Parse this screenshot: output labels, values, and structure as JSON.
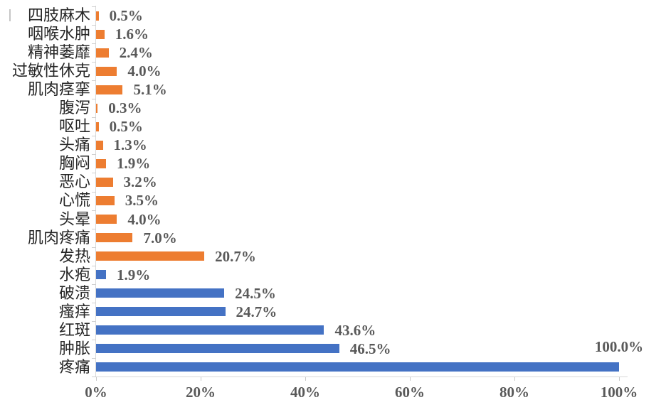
{
  "chart_data": {
    "type": "bar",
    "orientation": "horizontal",
    "title": "",
    "xlabel": "",
    "ylabel": "",
    "xlim": [
      0,
      100
    ],
    "grid": false,
    "legend_position": "none",
    "x_tick_labels": [
      "0%",
      "20%",
      "40%",
      "60%",
      "80%",
      "100%"
    ],
    "x_tick_values": [
      0,
      20,
      40,
      60,
      80,
      100
    ],
    "bar_colors": {
      "orange": "#ED7D31",
      "blue": "#4472C4"
    },
    "axis_color": "#D9D9D9",
    "category_text_color": "#262626",
    "value_text_color": "#595959",
    "items": [
      {
        "label": "四肢麻木",
        "value": 0.5,
        "display": "0.5%",
        "series": "orange"
      },
      {
        "label": "咽喉水肿",
        "value": 1.6,
        "display": "1.6%",
        "series": "orange"
      },
      {
        "label": "精神萎靡",
        "value": 2.4,
        "display": "2.4%",
        "series": "orange"
      },
      {
        "label": "过敏性休克",
        "value": 4.0,
        "display": "4.0%",
        "series": "orange"
      },
      {
        "label": "肌肉痉挛",
        "value": 5.1,
        "display": "5.1%",
        "series": "orange"
      },
      {
        "label": "腹泻",
        "value": 0.3,
        "display": "0.3%",
        "series": "orange"
      },
      {
        "label": "呕吐",
        "value": 0.5,
        "display": "0.5%",
        "series": "orange"
      },
      {
        "label": "头痛",
        "value": 1.3,
        "display": "1.3%",
        "series": "orange"
      },
      {
        "label": "胸闷",
        "value": 1.9,
        "display": "1.9%",
        "series": "orange"
      },
      {
        "label": "恶心",
        "value": 3.2,
        "display": "3.2%",
        "series": "orange"
      },
      {
        "label": "心慌",
        "value": 3.5,
        "display": "3.5%",
        "series": "orange"
      },
      {
        "label": "头晕",
        "value": 4.0,
        "display": "4.0%",
        "series": "orange"
      },
      {
        "label": "肌肉疼痛",
        "value": 7.0,
        "display": "7.0%",
        "series": "orange"
      },
      {
        "label": "发热",
        "value": 20.7,
        "display": "20.7%",
        "series": "orange"
      },
      {
        "label": "水疱",
        "value": 1.9,
        "display": "1.9%",
        "series": "blue"
      },
      {
        "label": "破溃",
        "value": 24.5,
        "display": "24.5%",
        "series": "blue"
      },
      {
        "label": "瘙痒",
        "value": 24.7,
        "display": "24.7%",
        "series": "blue"
      },
      {
        "label": "红斑",
        "value": 43.6,
        "display": "43.6%",
        "series": "blue"
      },
      {
        "label": "肿胀",
        "value": 46.5,
        "display": "46.5%",
        "series": "blue"
      },
      {
        "label": "疼痛",
        "value": 100.0,
        "display": "100.0%",
        "series": "blue",
        "label_position": "above-end"
      }
    ]
  }
}
